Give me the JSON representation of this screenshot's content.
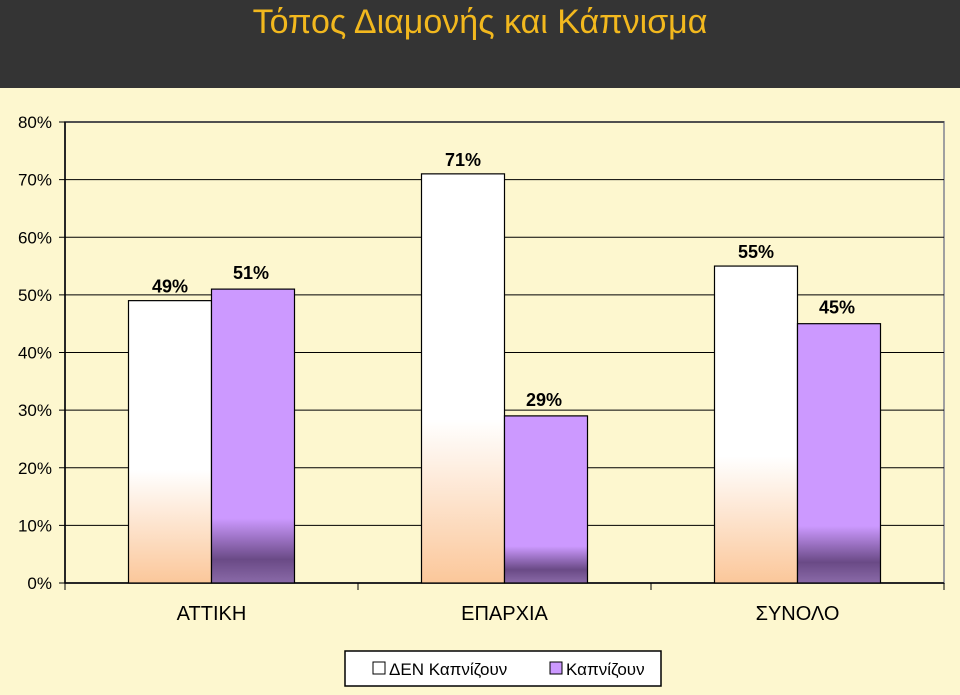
{
  "colors": {
    "background": "#343434",
    "title": "#f2b81e",
    "panel": "#fdf7cf",
    "series_non_smokers": "#ffffff",
    "series_smokers": "#cc99ff"
  },
  "chart_data": {
    "type": "bar",
    "title": "Τόπος Διαμονής και Κάπνισμα",
    "categories": [
      "ΑΤΤΙΚΗ",
      "ΕΠΑΡΧΙΑ",
      "ΣΥΝΟΛΟ"
    ],
    "series": [
      {
        "name": "ΔΕΝ Καπνίζουν",
        "values": [
          49,
          71,
          55
        ],
        "labels": [
          "49%",
          "71%",
          "55%"
        ]
      },
      {
        "name": "Καπνίζουν",
        "values": [
          51,
          29,
          45
        ],
        "labels": [
          "51%",
          "29%",
          "45%"
        ]
      }
    ],
    "ylim": [
      0,
      80
    ],
    "yticks": [
      "0%",
      "10%",
      "20%",
      "30%",
      "40%",
      "50%",
      "60%",
      "70%",
      "80%"
    ],
    "grid": true,
    "legend": "bottom"
  }
}
